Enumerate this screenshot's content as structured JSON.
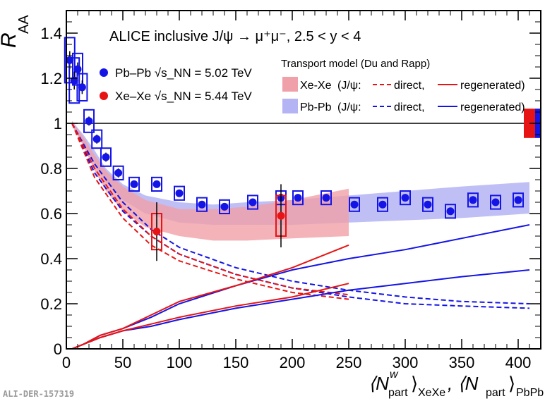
{
  "chart_data": {
    "type": "scatter",
    "title": "ALICE inclusive J/ψ → μ⁺μ⁻, 2.5 < y < 4",
    "ylabel": "R",
    "ylabel_sub": "AA",
    "xlabel_parts": [
      "⟨N",
      "w",
      "part",
      "⟩",
      "XeXe",
      ", ⟨N",
      "part",
      "⟩",
      "PbPb"
    ],
    "xlim": [
      0,
      420
    ],
    "ylim": [
      0,
      1.5
    ],
    "x_ticks": [
      0,
      50,
      100,
      150,
      200,
      250,
      300,
      350,
      400
    ],
    "y_ticks": [
      0,
      0.2,
      0.4,
      0.6,
      0.8,
      1,
      1.2,
      1.4
    ],
    "y_tick_labels": [
      "0",
      "0.2",
      "0.4",
      "0.6",
      "0.8",
      "1",
      "1.2",
      "1.4"
    ],
    "reference_line": 1,
    "colors": {
      "pbpb": "#1414e6",
      "xexe": "#e61414",
      "pbpb_band": "#b4b4f5",
      "xexe_band": "#f0a0a8",
      "axis": "#000000"
    },
    "series": [
      {
        "name": "Pb–Pb √s_NN = 5.02 TeV",
        "color": "#1414e6",
        "x": [
          3,
          7,
          10,
          14,
          20,
          27,
          35,
          46,
          60,
          80,
          100,
          120,
          140,
          165,
          190,
          205,
          230,
          255,
          280,
          300,
          320,
          340,
          360,
          380,
          400
        ],
        "y": [
          1.28,
          1.19,
          1.24,
          1.16,
          1.01,
          0.93,
          0.85,
          0.78,
          0.73,
          0.73,
          0.69,
          0.64,
          0.63,
          0.65,
          0.67,
          0.67,
          0.67,
          0.64,
          0.64,
          0.67,
          0.64,
          0.61,
          0.66,
          0.65,
          0.66
        ],
        "yerr": [
          0.04,
          0.04,
          0.03,
          0.03,
          0.02,
          0.02,
          0.02,
          0.02,
          0.01,
          0.01,
          0.01,
          0.01,
          0.01,
          0.01,
          0.01,
          0.01,
          0.01,
          0.01,
          0.01,
          0.01,
          0.01,
          0.01,
          0.01,
          0.01,
          0.01
        ],
        "syst": [
          0.1,
          0.1,
          0.07,
          0.06,
          0.05,
          0.04,
          0.04,
          0.03,
          0.03,
          0.03,
          0.03,
          0.03,
          0.03,
          0.03,
          0.03,
          0.03,
          0.03,
          0.03,
          0.03,
          0.03,
          0.03,
          0.03,
          0.03,
          0.03,
          0.03
        ]
      },
      {
        "name": "Xe–Xe √s_NN = 5.44 TeV",
        "color": "#e61414",
        "x": [
          80,
          190
        ],
        "y": [
          0.52,
          0.59
        ],
        "yerr": [
          0.13,
          0.14
        ],
        "syst": [
          0.08,
          0.09
        ]
      }
    ],
    "model_title": "Transport model (Du and Rapp)",
    "model_rows": [
      {
        "system": "Xe-Xe",
        "prefix": "(J/ψ:",
        "direct": "direct,",
        "regen": "regenerated)"
      },
      {
        "system": "Pb-Pb",
        "prefix": "(J/ψ:",
        "direct": "direct,",
        "regen": "regenerated)"
      }
    ],
    "model_bands": [
      {
        "name": "Pb-Pb total",
        "color": "#b4b4f5",
        "x": [
          5,
          15,
          25,
          35,
          50,
          70,
          100,
          130,
          160,
          200,
          250,
          300,
          350,
          410
        ],
        "lo": [
          0.99,
          0.91,
          0.82,
          0.74,
          0.66,
          0.6,
          0.56,
          0.55,
          0.55,
          0.55,
          0.56,
          0.57,
          0.58,
          0.6
        ],
        "hi": [
          1.01,
          0.95,
          0.88,
          0.8,
          0.73,
          0.68,
          0.65,
          0.64,
          0.65,
          0.66,
          0.68,
          0.7,
          0.72,
          0.74
        ]
      },
      {
        "name": "Xe-Xe total",
        "color": "#f0a0a8",
        "x": [
          5,
          15,
          25,
          35,
          50,
          70,
          100,
          130,
          160,
          200,
          250
        ],
        "lo": [
          0.99,
          0.9,
          0.79,
          0.7,
          0.61,
          0.54,
          0.5,
          0.48,
          0.48,
          0.49,
          0.5
        ],
        "hi": [
          1.01,
          0.94,
          0.86,
          0.79,
          0.72,
          0.66,
          0.62,
          0.62,
          0.63,
          0.66,
          0.71
        ]
      }
    ],
    "model_curves": [
      {
        "system": "Pb-Pb",
        "kind": "direct",
        "color": "#1414e6",
        "dash": true,
        "x": [
          5,
          25,
          50,
          75,
          100,
          150,
          200,
          250,
          300,
          350,
          410
        ],
        "y": [
          1.0,
          0.82,
          0.65,
          0.53,
          0.45,
          0.36,
          0.3,
          0.26,
          0.23,
          0.21,
          0.2
        ]
      },
      {
        "system": "Pb-Pb",
        "kind": "direct",
        "color": "#1414e6",
        "dash": true,
        "x": [
          5,
          25,
          50,
          75,
          100,
          150,
          200,
          250,
          300,
          350,
          410
        ],
        "y": [
          1.0,
          0.78,
          0.61,
          0.5,
          0.42,
          0.33,
          0.27,
          0.23,
          0.2,
          0.19,
          0.18
        ]
      },
      {
        "system": "Xe-Xe",
        "kind": "direct",
        "color": "#e61414",
        "dash": true,
        "x": [
          5,
          25,
          50,
          75,
          100,
          150,
          200,
          250
        ],
        "y": [
          1.0,
          0.8,
          0.62,
          0.5,
          0.42,
          0.33,
          0.27,
          0.24
        ]
      },
      {
        "system": "Xe-Xe",
        "kind": "direct",
        "color": "#e61414",
        "dash": true,
        "x": [
          5,
          25,
          50,
          75,
          100,
          150,
          200,
          250
        ],
        "y": [
          1.0,
          0.76,
          0.58,
          0.46,
          0.39,
          0.31,
          0.25,
          0.22
        ]
      },
      {
        "system": "Pb-Pb",
        "kind": "regenerated",
        "color": "#1414e6",
        "dash": false,
        "x": [
          5,
          15,
          30,
          50,
          75,
          100,
          150,
          200,
          250,
          300,
          350,
          410
        ],
        "y": [
          0.0,
          0.02,
          0.06,
          0.09,
          0.14,
          0.2,
          0.28,
          0.35,
          0.4,
          0.44,
          0.49,
          0.55
        ]
      },
      {
        "system": "Pb-Pb",
        "kind": "regenerated",
        "color": "#1414e6",
        "dash": false,
        "x": [
          5,
          15,
          30,
          50,
          75,
          100,
          150,
          200,
          250,
          300,
          350,
          410
        ],
        "y": [
          0.0,
          0.02,
          0.05,
          0.08,
          0.1,
          0.13,
          0.18,
          0.22,
          0.26,
          0.29,
          0.32,
          0.35
        ]
      },
      {
        "system": "Xe-Xe",
        "kind": "regenerated",
        "color": "#e61414",
        "dash": false,
        "x": [
          5,
          15,
          30,
          50,
          75,
          100,
          150,
          200,
          250
        ],
        "y": [
          0.0,
          0.02,
          0.06,
          0.09,
          0.15,
          0.21,
          0.28,
          0.36,
          0.46
        ]
      },
      {
        "system": "Xe-Xe",
        "kind": "regenerated",
        "color": "#e61414",
        "dash": false,
        "x": [
          5,
          15,
          30,
          50,
          75,
          100,
          150,
          200,
          250
        ],
        "y": [
          0.0,
          0.02,
          0.05,
          0.08,
          0.11,
          0.14,
          0.19,
          0.23,
          0.29
        ]
      }
    ],
    "watermark": "ALI-DER-157319"
  }
}
